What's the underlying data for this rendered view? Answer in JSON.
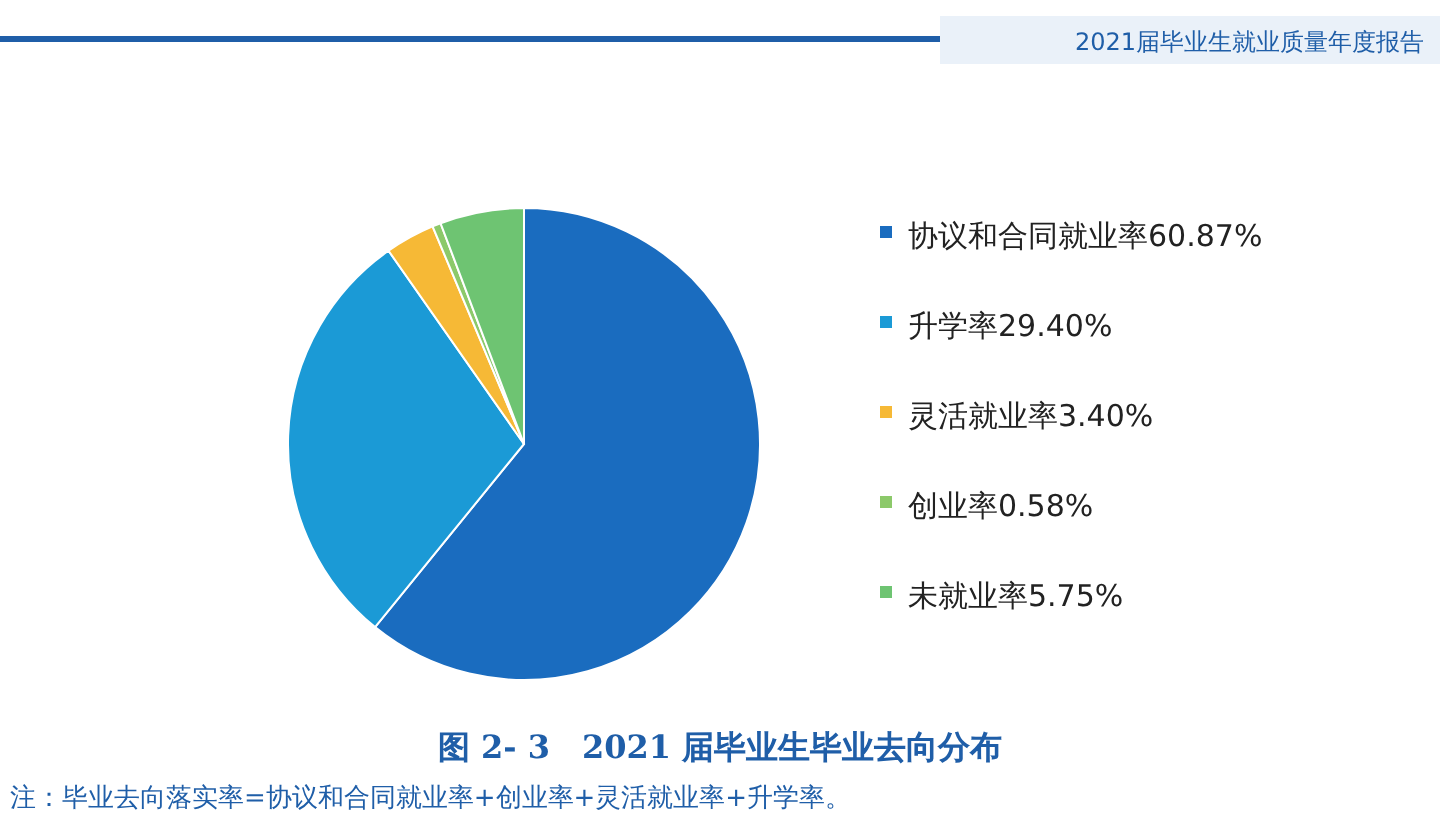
{
  "chart_data": {
    "type": "pie",
    "title": "图 2- 3　2021 届毕业生毕业去向分布",
    "subtitle": "2021届毕业生就业质量年度报告",
    "categories": [
      "协议和合同就业率60.87%",
      "升学率29.40%",
      "灵活就业率3.40%",
      "创业率0.58%",
      "未就业率5.75%"
    ],
    "values": [
      60.87,
      29.4,
      3.4,
      0.58,
      5.75
    ],
    "colors": [
      "#1a6cbf",
      "#1b9ad6",
      "#f6b936",
      "#8cc96a",
      "#6ec472"
    ],
    "legend": "right",
    "annotations": [
      "注：毕业去向落实率=协议和合同就业率+创业率+灵活就业率+升学率。"
    ]
  }
}
